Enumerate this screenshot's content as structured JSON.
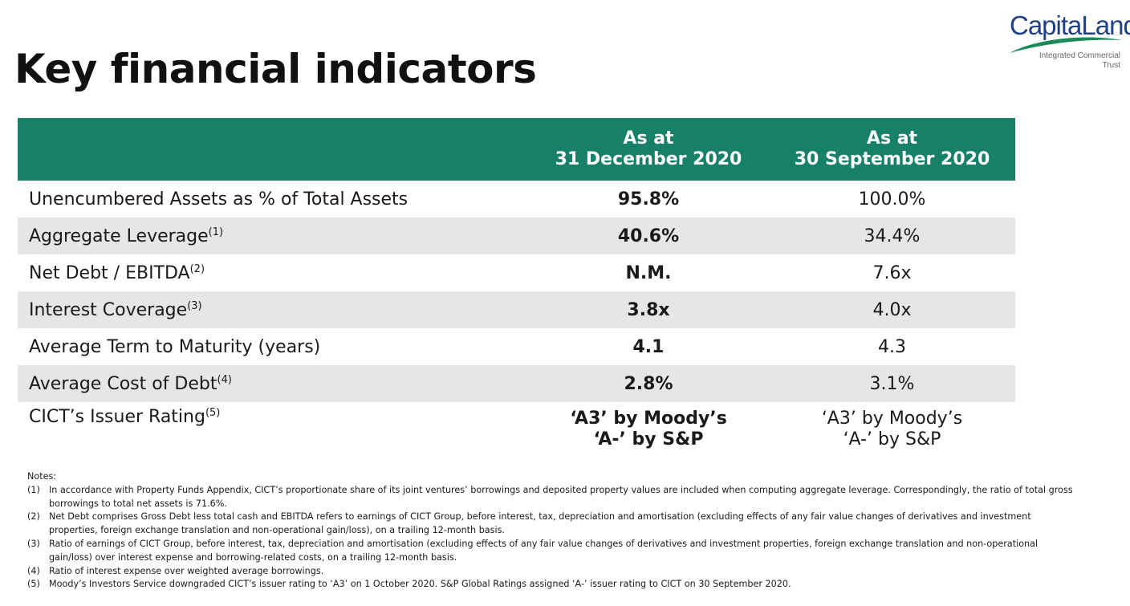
{
  "page": {
    "title": "Key financial indicators"
  },
  "logo": {
    "wordmark": "CapitaLand",
    "subtitle_line1": "Integrated Commercial",
    "subtitle_line2": "Trust",
    "colors": {
      "word": "#1f3f86",
      "swoosh": "#1b8a5a"
    }
  },
  "colors": {
    "header_bg": "#168068",
    "row_alt_bg": "#e6e6e6"
  },
  "table": {
    "header": {
      "col1_line1": "As at",
      "col1_line2": "31 December 2020",
      "col2_line1": "As at",
      "col2_line2": "30 September 2020"
    },
    "rows": [
      {
        "label": "Unencumbered Assets as % of Total Assets",
        "note": "",
        "dec": "95.8%",
        "sep": "100.0%"
      },
      {
        "label": "Aggregate Leverage",
        "note": "(1)",
        "dec": "40.6%",
        "sep": "34.4%"
      },
      {
        "label": "Net Debt / EBITDA",
        "note": "(2)",
        "dec": "N.M.",
        "sep": "7.6x"
      },
      {
        "label": "Interest Coverage",
        "note": "(3)",
        "dec": "3.8x",
        "sep": "4.0x"
      },
      {
        "label": "Average Term to Maturity (years)",
        "note": "",
        "dec": "4.1",
        "sep": "4.3"
      },
      {
        "label": "Average Cost of Debt",
        "note": "(4)",
        "dec": "2.8%",
        "sep": "3.1%"
      }
    ],
    "rating": {
      "label": "CICT’s Issuer Rating",
      "note": "(5)",
      "dec_line1": "‘A3’ by Moody’s",
      "dec_line2": "‘A-’ by S&P",
      "sep_line1": "‘A3’ by Moody’s",
      "sep_line2": "‘A-’ by S&P"
    }
  },
  "notes": {
    "heading": "Notes:",
    "items": [
      {
        "num": "(1)",
        "text": "In accordance with Property Funds Appendix, CICT’s proportionate share of its joint ventures’ borrowings and deposited property values are included when computing aggregate leverage. Correspondingly, the ratio of total gross borrowings to total net assets is 71.6%."
      },
      {
        "num": "(2)",
        "text": "Net Debt comprises Gross Debt less total cash and EBITDA refers to earnings of CICT Group, before interest, tax, depreciation and amortisation (excluding effects of any fair value changes of derivatives and investment properties, foreign exchange translation and non-operational gain/loss), on a trailing 12-month basis."
      },
      {
        "num": "(3)",
        "text": "Ratio of earnings of CICT Group, before interest, tax, depreciation and amortisation (excluding effects of any fair value changes of derivatives and investment properties, foreign exchange translation and non-operational gain/loss) over interest expense and borrowing-related costs, on a trailing 12-month basis."
      },
      {
        "num": "(4)",
        "text": "Ratio of interest expense over weighted average borrowings."
      },
      {
        "num": "(5)",
        "text": "Moody’s Investors Service downgraded CICT’s issuer rating to ‘A3’ on 1 October 2020.  S&P Global Ratings assigned ‘A-’ issuer rating to CICT on 30 September 2020."
      }
    ]
  }
}
